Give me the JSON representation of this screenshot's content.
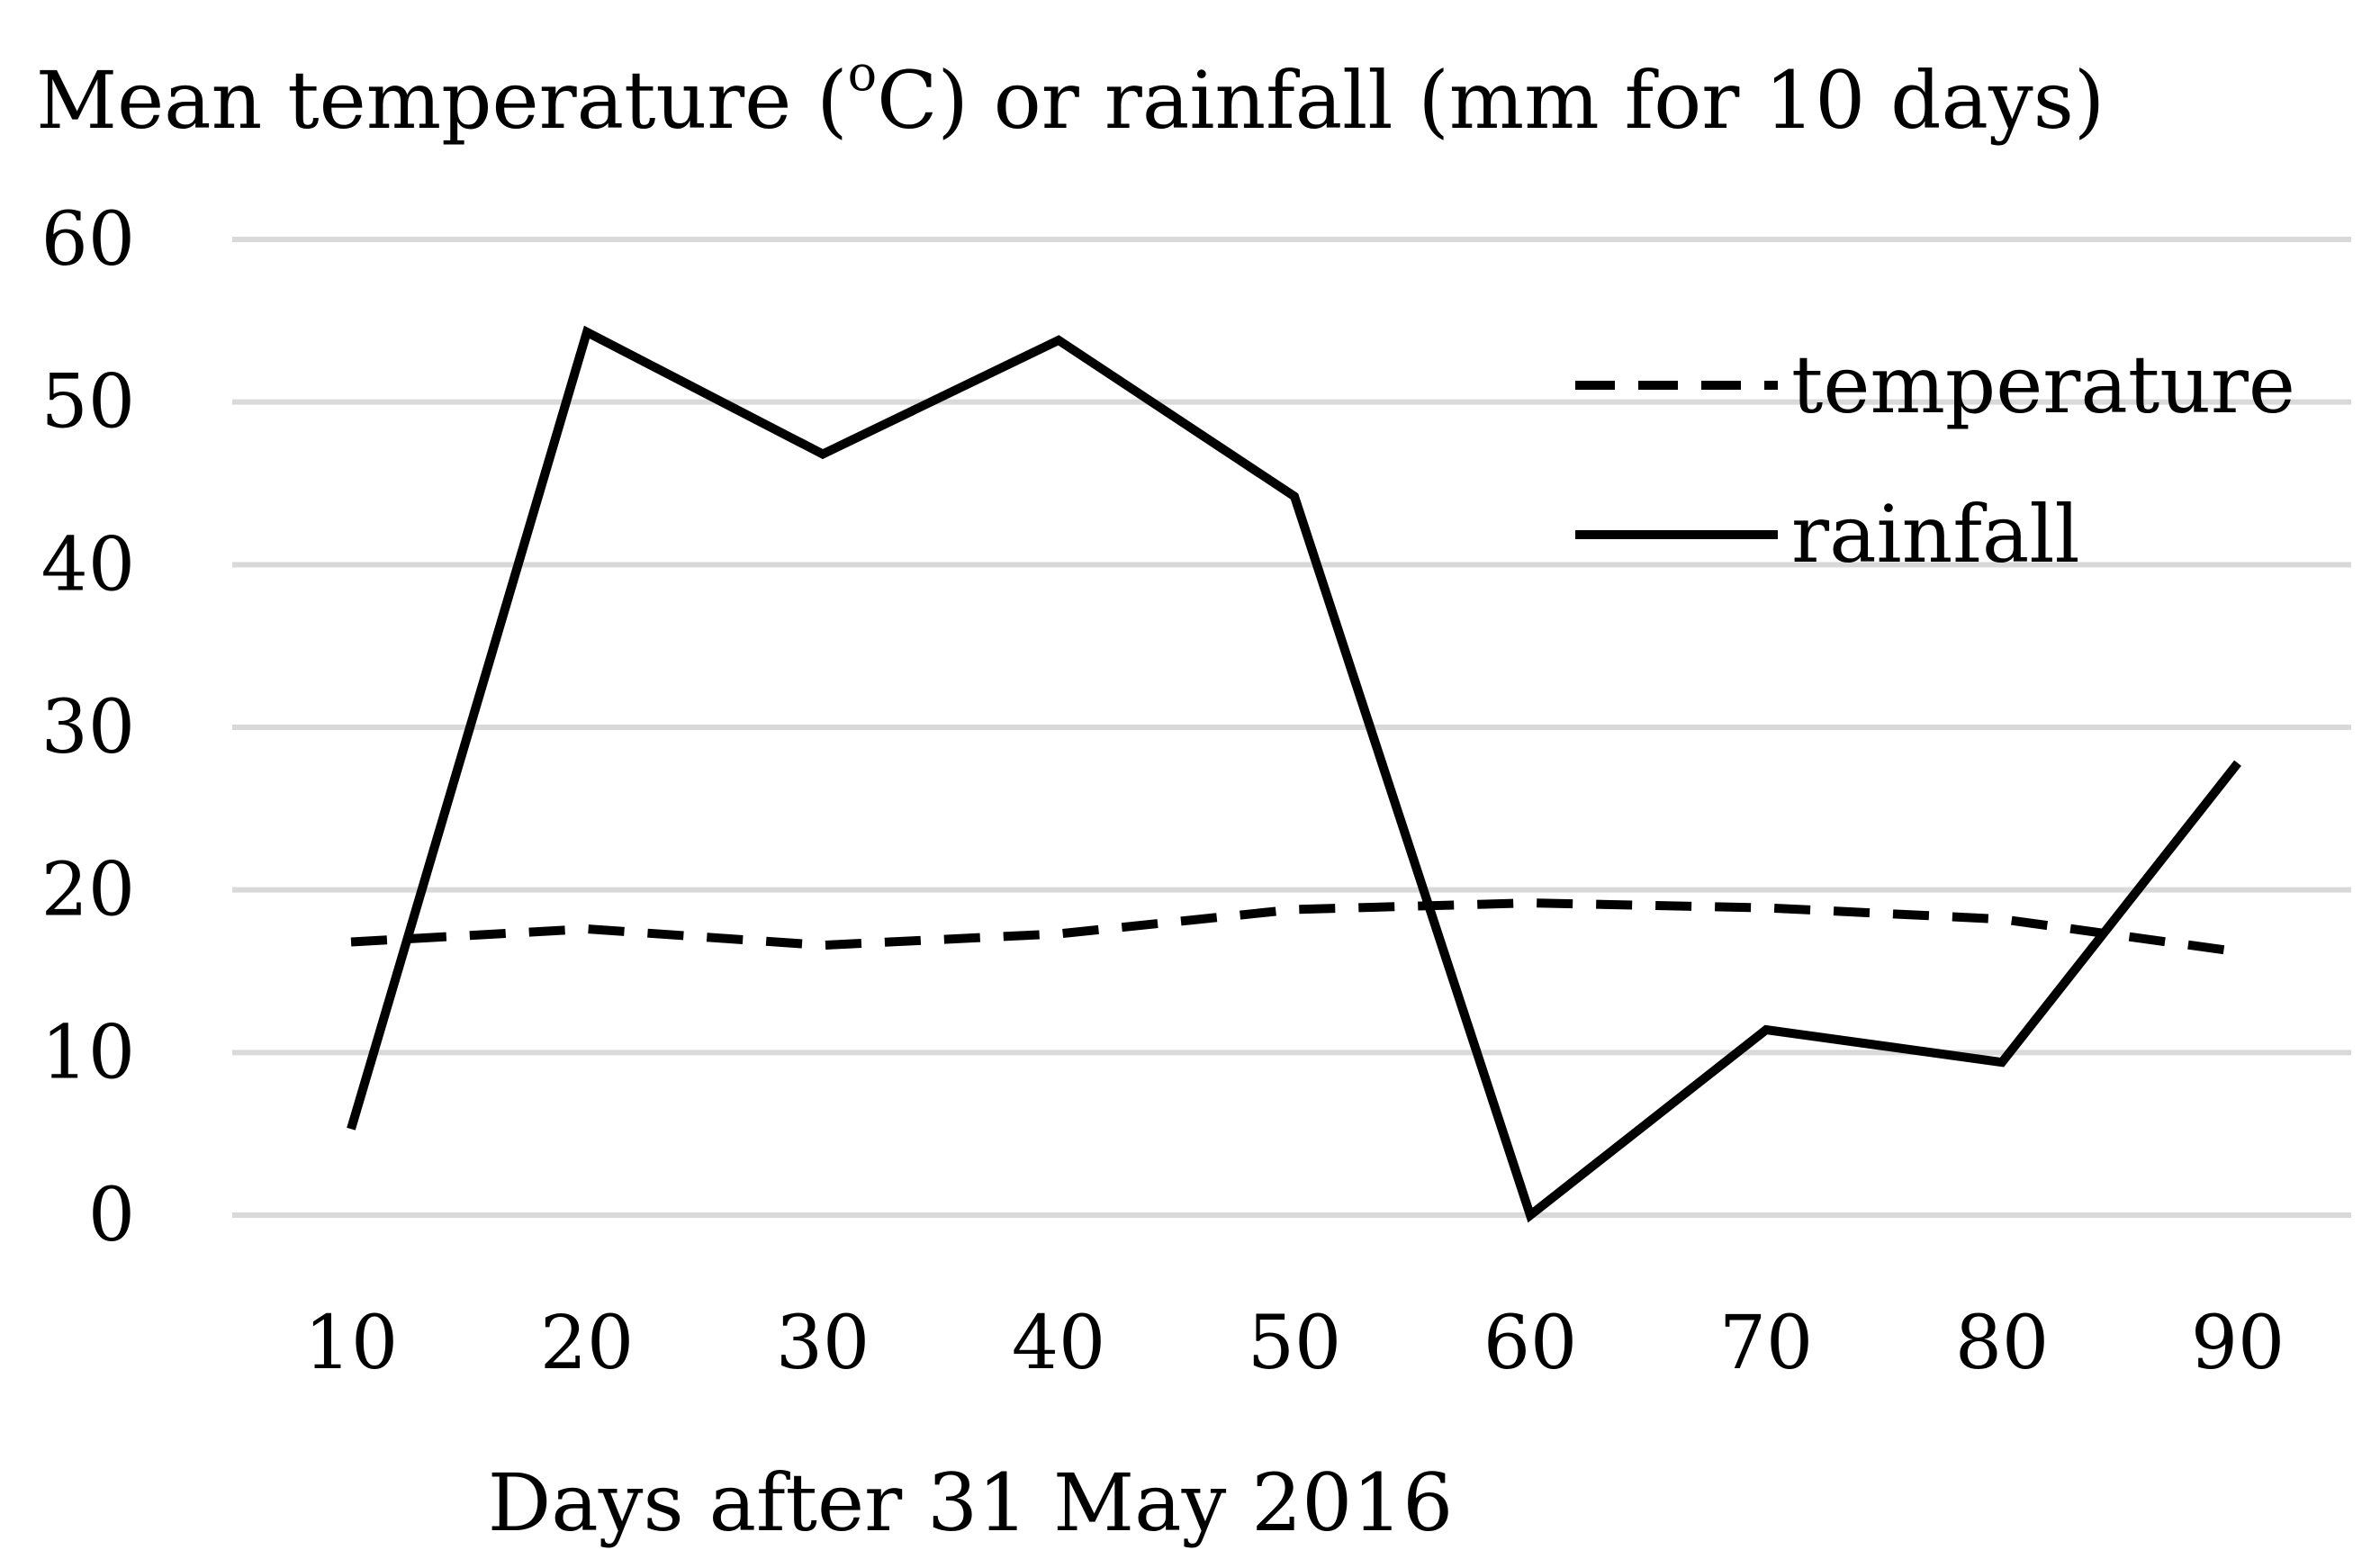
{
  "chart_data": {
    "type": "line",
    "title": "",
    "ylabel_parts": {
      "pre": "Mean temperature (",
      "sup": "o",
      "post": "C) or rainfall (mm for 10 days)"
    },
    "xlabel": "Days after 31 May 2016",
    "categories": [
      "10",
      "20",
      "30",
      "40",
      "50",
      "60",
      "70",
      "80",
      "90"
    ],
    "ylim": [
      0,
      60
    ],
    "yticks": [
      "0",
      "10",
      "20",
      "30",
      "40",
      "50",
      "60"
    ],
    "grid": true,
    "legend_position": "top-right",
    "series": [
      {
        "name": "temperature",
        "style": "dashed",
        "color": "#000000",
        "values": [
          16.8,
          17.6,
          16.6,
          17.3,
          18.8,
          19.2,
          18.9,
          18.2,
          16.2
        ]
      },
      {
        "name": "rainfall",
        "style": "solid",
        "color": "#000000",
        "values": [
          5.3,
          54.3,
          46.8,
          53.8,
          44.2,
          0.0,
          11.4,
          9.4,
          27.8
        ]
      }
    ]
  }
}
